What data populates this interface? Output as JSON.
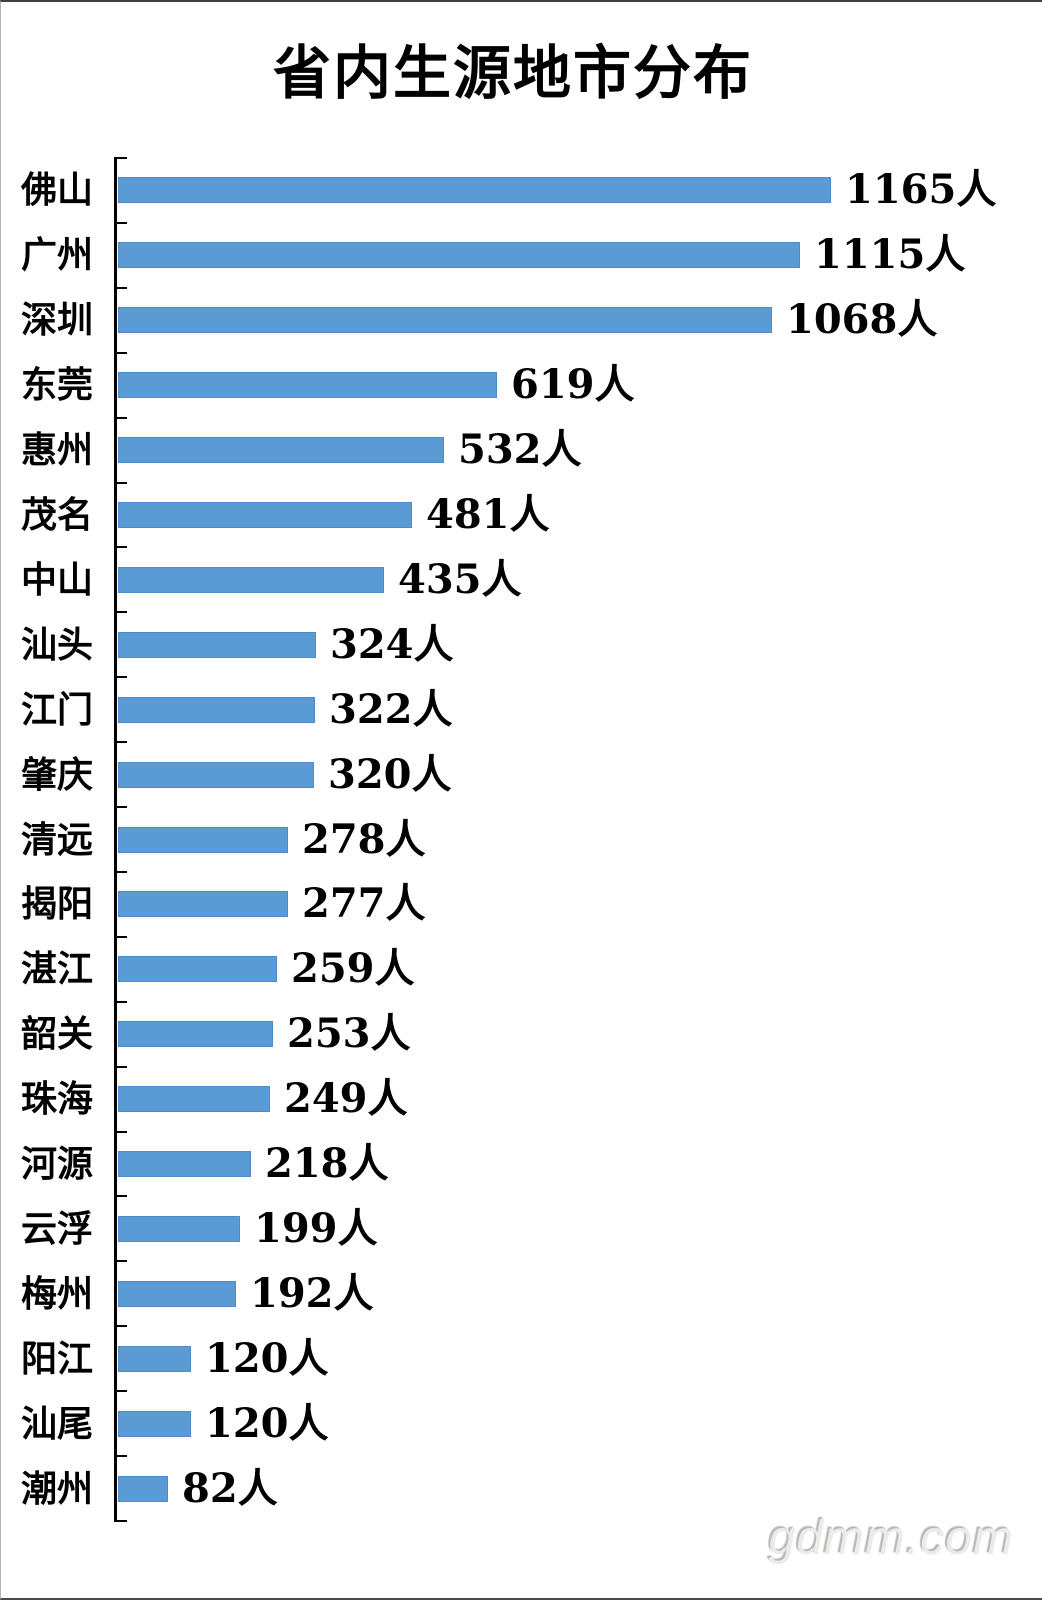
{
  "page": {
    "title": "省内生源地市分布",
    "watermark": "gdmm.com"
  },
  "chart_data": {
    "type": "bar",
    "orientation": "horizontal",
    "title": "省内生源地市分布",
    "unit_suffix": "人",
    "categories": [
      "佛山",
      "广州",
      "深圳",
      "东莞",
      "惠州",
      "茂名",
      "中山",
      "汕头",
      "江门",
      "肇庆",
      "清远",
      "揭阳",
      "湛江",
      "韶关",
      "珠海",
      "河源",
      "云浮",
      "梅州",
      "阳江",
      "汕尾",
      "潮州"
    ],
    "values": [
      1165,
      1115,
      1068,
      619,
      532,
      481,
      435,
      324,
      322,
      320,
      278,
      277,
      259,
      253,
      249,
      218,
      199,
      192,
      120,
      120,
      82
    ],
    "value_labels": [
      "1165人",
      "1115人",
      "1068人",
      "619人",
      "532人",
      "481人",
      "435人",
      "324人",
      "322人",
      "320人",
      "278人",
      "277人",
      "259人",
      "253人",
      "249人",
      "218人",
      "199人",
      "192人",
      "120人",
      "120人",
      "82人"
    ],
    "xlim": [
      0,
      1200
    ],
    "grid": false,
    "legend": false,
    "value_label_position": "end-of-bar",
    "bar_color": "#5B9BD5",
    "bar_border_color": "#4E8CC9",
    "axis_color": "#000000",
    "title_color": "#000000",
    "label_color": "#000000",
    "watermark_color": "#D8D8D4"
  }
}
